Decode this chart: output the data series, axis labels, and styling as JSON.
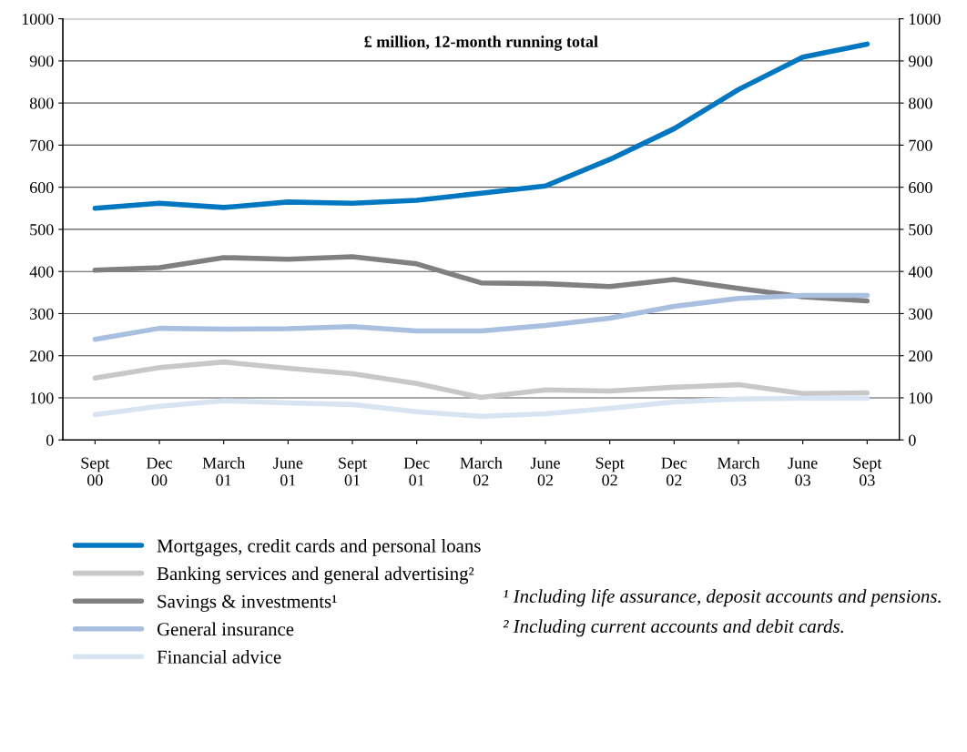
{
  "chart_data": {
    "type": "line",
    "title": "£ million, 12-month running total",
    "categories": [
      "Sept\n00",
      "Dec\n00",
      "March\n01",
      "June\n01",
      "Sept\n01",
      "Dec\n01",
      "March\n02",
      "June\n02",
      "Sept\n02",
      "Dec\n02",
      "March\n03",
      "June\n03",
      "Sept\n03"
    ],
    "series": [
      {
        "name": "Mortgages, credit cards and personal loans",
        "color": "#0077c0",
        "values": [
          550,
          562,
          552,
          565,
          562,
          569,
          586,
          603,
          666,
          739,
          832,
          909,
          940
        ]
      },
      {
        "name": "Banking services and general advertising²",
        "color": "#c8c8c8",
        "values": [
          147,
          172,
          185,
          170,
          157,
          134,
          101,
          119,
          116,
          125,
          131,
          110,
          112
        ]
      },
      {
        "name": "Savings & investments¹",
        "color": "#808080",
        "values": [
          403,
          409,
          433,
          429,
          435,
          418,
          373,
          371,
          364,
          381,
          360,
          340,
          330
        ]
      },
      {
        "name": "General insurance",
        "color": "#a8bfe0",
        "values": [
          239,
          265,
          263,
          264,
          269,
          259,
          259,
          272,
          289,
          317,
          336,
          343,
          343
        ]
      },
      {
        "name": "Financial advice",
        "color": "#d8e4f2",
        "values": [
          60,
          80,
          93,
          88,
          84,
          67,
          56,
          62,
          75,
          90,
          97,
          99,
          99
        ]
      }
    ],
    "ylim": [
      0,
      1000
    ],
    "yticks": [
      0,
      100,
      200,
      300,
      400,
      500,
      600,
      700,
      800,
      900,
      1000
    ],
    "y2lim": [
      0,
      1000
    ],
    "y2ticks": [
      0,
      100,
      200,
      300,
      400,
      500,
      600,
      700,
      800,
      900,
      1000
    ],
    "grid": "y",
    "legend": "bottom",
    "marker": "none",
    "line_style": "solid",
    "annotations": [
      "¹ Including life assurance, deposit accounts and pensions.",
      "² Including current accounts and debit cards."
    ]
  }
}
